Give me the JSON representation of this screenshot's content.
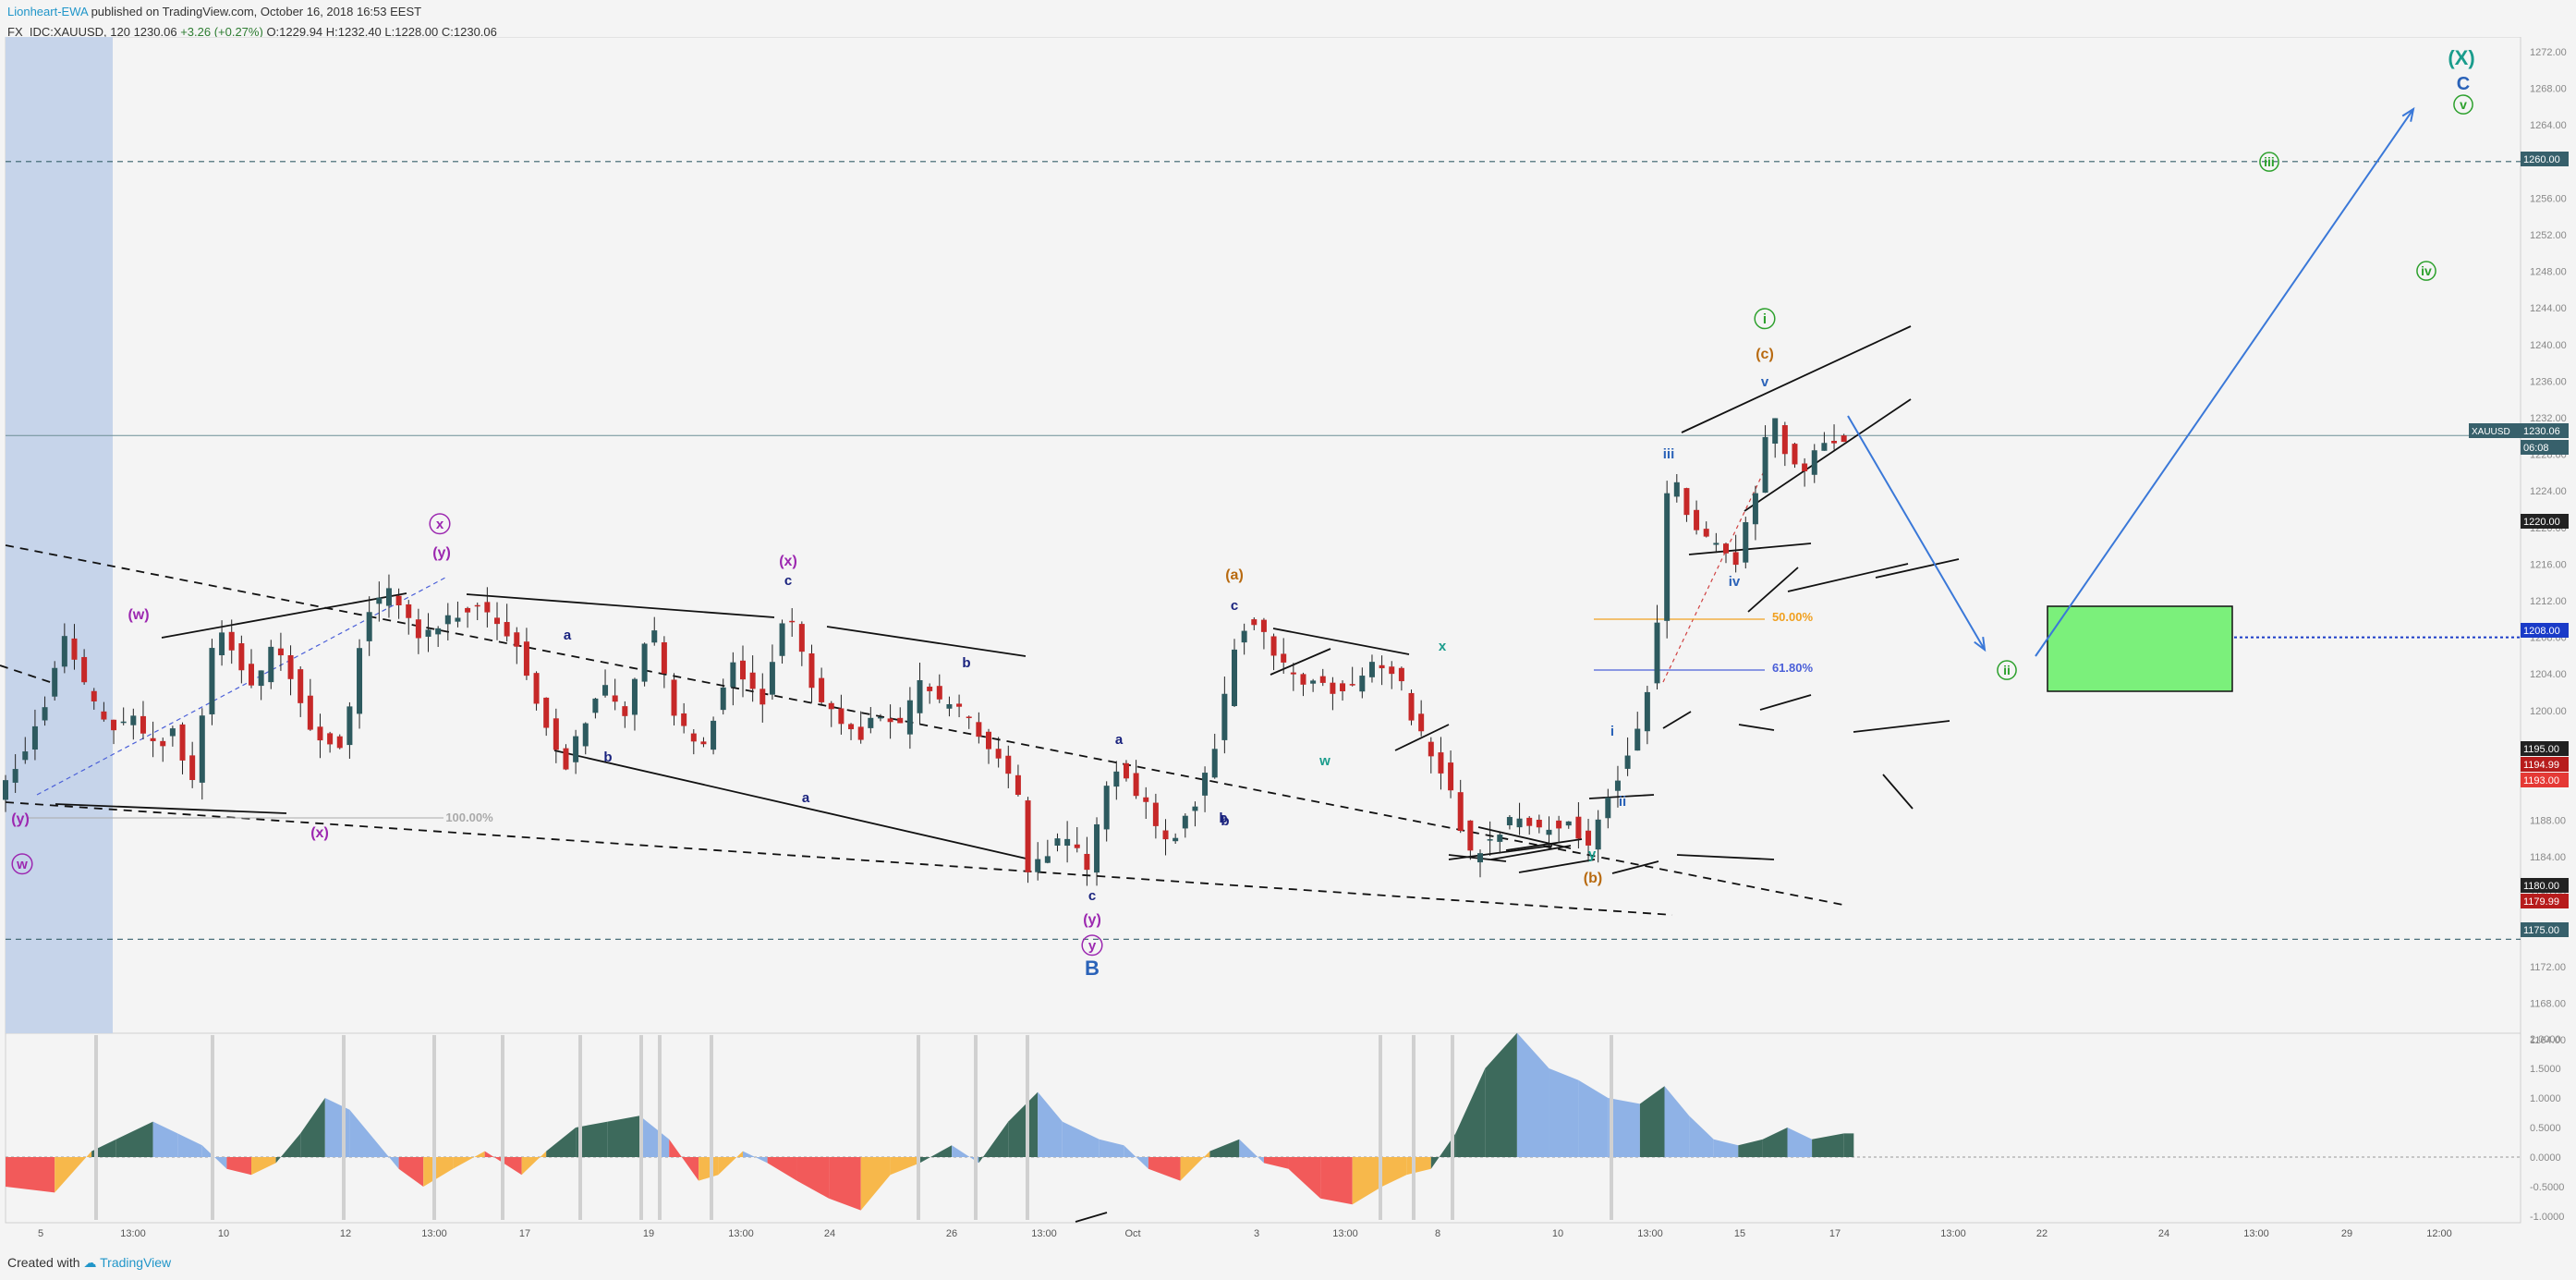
{
  "header": {
    "author": "Lionheart-EWA",
    "published": "published on TradingView.com, October 16, 2018 16:53 EEST",
    "symbol_line": "FX_IDC:XAUUSD, 120",
    "last": "1230.06",
    "change": "+3.26 (+0.27%)",
    "open": "O:1229.94",
    "high": "H:1232.40",
    "low": "L:1228.00",
    "close": "C:1230.06"
  },
  "footer": {
    "created_with": "Created with",
    "brand": "TradingView"
  },
  "chart_data": {
    "type": "candlestick",
    "symbol": "XAUUSD",
    "interval": "120",
    "ylim": [
      1164,
      1274
    ],
    "y_ticks": [
      1164,
      1168,
      1172,
      1176,
      1180,
      1184,
      1188,
      1192,
      1196,
      1200,
      1204,
      1208,
      1212,
      1216,
      1220,
      1224,
      1228,
      1232,
      1236,
      1240,
      1244,
      1248,
      1252,
      1256,
      1260,
      1264,
      1268,
      1272
    ],
    "price_badges": [
      {
        "label": "XAUUSD",
        "value": "1230.06",
        "color": "#37606b"
      },
      {
        "label": "",
        "value": "06:08",
        "color": "#37606b"
      },
      {
        "label": "",
        "value": "1260.00",
        "color": "#37606b"
      },
      {
        "label": "",
        "value": "1220.00",
        "color": "#222222"
      },
      {
        "label": "",
        "value": "1208.00",
        "color": "#1a3bc8"
      },
      {
        "label": "",
        "value": "1195.00",
        "color": "#222222"
      },
      {
        "label": "",
        "value": "1194.99",
        "color": "#b71c1c"
      },
      {
        "label": "",
        "value": "1193.00",
        "color": "#e53935"
      },
      {
        "label": "",
        "value": "1180.00",
        "color": "#222222"
      },
      {
        "label": "",
        "value": "1179.99",
        "color": "#b71c1c"
      },
      {
        "label": "",
        "value": "1175.00",
        "color": "#37606b"
      }
    ],
    "x_ticks": [
      "5",
      "13:00",
      "10",
      "12",
      "13:00",
      "17",
      "19",
      "13:00",
      "24",
      "26",
      "13:00",
      "Oct",
      "3",
      "13:00",
      "8",
      "10",
      "13:00",
      "15",
      "17",
      "13:00",
      "22",
      "24",
      "13:00",
      "29",
      "12:00"
    ],
    "path_points": [
      [
        0,
        1190
      ],
      [
        10,
        1195
      ],
      [
        20,
        1201
      ],
      [
        28,
        1208
      ],
      [
        35,
        1203
      ],
      [
        45,
        1198
      ],
      [
        55,
        1199
      ],
      [
        65,
        1196
      ],
      [
        72,
        1198
      ],
      [
        80,
        1192
      ],
      [
        90,
        1210
      ],
      [
        100,
        1205
      ],
      [
        106,
        1202
      ],
      [
        113,
        1208
      ],
      [
        120,
        1204
      ],
      [
        130,
        1197
      ],
      [
        142,
        1196
      ],
      [
        150,
        1211
      ],
      [
        160,
        1213
      ],
      [
        172,
        1208
      ],
      [
        182,
        1210
      ],
      [
        196,
        1212
      ],
      [
        212,
        1207
      ],
      [
        225,
        1198
      ],
      [
        232,
        1194
      ],
      [
        246,
        1203
      ],
      [
        256,
        1199
      ],
      [
        266,
        1210
      ],
      [
        276,
        1200
      ],
      [
        286,
        1195
      ],
      [
        300,
        1205
      ],
      [
        312,
        1201
      ],
      [
        322,
        1212
      ],
      [
        332,
        1203
      ],
      [
        342,
        1199
      ],
      [
        350,
        1197
      ],
      [
        358,
        1199
      ],
      [
        368,
        1198
      ],
      [
        376,
        1203
      ],
      [
        384,
        1201
      ],
      [
        392,
        1200
      ],
      [
        402,
        1197
      ],
      [
        410,
        1194
      ],
      [
        416,
        1190
      ],
      [
        420,
        1182
      ],
      [
        426,
        1184
      ],
      [
        435,
        1186
      ],
      [
        444,
        1183
      ],
      [
        455,
        1194
      ],
      [
        465,
        1191
      ],
      [
        472,
        1187
      ],
      [
        478,
        1186
      ],
      [
        490,
        1191
      ],
      [
        498,
        1198
      ],
      [
        505,
        1209
      ],
      [
        512,
        1210
      ],
      [
        520,
        1206
      ],
      [
        530,
        1203
      ],
      [
        540,
        1203
      ],
      [
        549,
        1202
      ],
      [
        560,
        1205
      ],
      [
        570,
        1204
      ],
      [
        578,
        1198
      ],
      [
        590,
        1193
      ],
      [
        600,
        1184
      ],
      [
        610,
        1187
      ],
      [
        620,
        1188
      ],
      [
        630,
        1187
      ],
      [
        640,
        1188
      ],
      [
        648,
        1185
      ],
      [
        655,
        1190
      ],
      [
        662,
        1194
      ],
      [
        670,
        1200
      ],
      [
        675,
        1206
      ],
      [
        680,
        1223
      ],
      [
        685,
        1225
      ],
      [
        690,
        1220
      ],
      [
        695,
        1219
      ],
      [
        702,
        1218
      ],
      [
        708,
        1216
      ],
      [
        714,
        1223
      ],
      [
        718,
        1226
      ],
      [
        722,
        1233
      ],
      [
        726,
        1230
      ],
      [
        730,
        1227
      ],
      [
        736,
        1226
      ],
      [
        742,
        1229
      ],
      [
        748,
        1230
      ]
    ],
    "indicator": {
      "ylim": [
        -1.2,
        2.2
      ],
      "y_ticks": [
        2.0,
        1.5,
        1.0,
        0.5,
        0.0,
        -0.5,
        -1.0
      ],
      "y_tick_labels": [
        "2.0000",
        "1.5000",
        "1.0000",
        "0.5000",
        "0.0000",
        "-0.5000",
        "-1.0000"
      ],
      "x": [
        0,
        20,
        35,
        45,
        60,
        70,
        80,
        90,
        100,
        110,
        120,
        130,
        140,
        150,
        160,
        170,
        182,
        195,
        210,
        220,
        232,
        245,
        258,
        270,
        282,
        290,
        300,
        310,
        322,
        335,
        348,
        360,
        372,
        385,
        396,
        408,
        420,
        430,
        445,
        455,
        465,
        478,
        490,
        502,
        512,
        522,
        535,
        548,
        560,
        570,
        580,
        590,
        602,
        615,
        628,
        640,
        652,
        665,
        675,
        685,
        695,
        705,
        715,
        725,
        735,
        748,
        752
      ],
      "values": [
        -0.5,
        -0.6,
        0.1,
        0.3,
        0.6,
        0.4,
        0.2,
        -0.2,
        -0.3,
        -0.1,
        0.4,
        1.0,
        0.8,
        0.3,
        -0.2,
        -0.5,
        -0.2,
        0.1,
        -0.3,
        0.1,
        0.5,
        0.6,
        0.7,
        0.3,
        -0.4,
        -0.3,
        0.1,
        -0.1,
        -0.4,
        -0.7,
        -0.9,
        -0.3,
        -0.1,
        0.2,
        -0.1,
        0.6,
        1.1,
        0.6,
        0.3,
        0.2,
        -0.2,
        -0.4,
        0.1,
        0.3,
        -0.1,
        -0.2,
        -0.7,
        -0.8,
        -0.5,
        -0.3,
        -0.2,
        0.4,
        1.5,
        2.1,
        1.5,
        1.3,
        1.0,
        0.9,
        1.2,
        0.7,
        0.3,
        0.2,
        0.3,
        0.5,
        0.3,
        0.4,
        0.4
      ]
    },
    "annotations": [
      "(X)",
      "C",
      "v",
      "iii",
      "iv",
      "i",
      "(c)",
      "ii",
      "iii",
      "iv",
      "v",
      "i",
      "ii",
      "y",
      "(b)",
      "x",
      "w",
      "(a)",
      "c",
      "b",
      "a",
      "(x)",
      "c",
      "a",
      "b",
      "(y)",
      "x",
      "(w)",
      "b",
      "(y)",
      "(x)",
      "w",
      "c",
      "(y)",
      "y",
      "B",
      "a",
      "b",
      "100.00%",
      "50.00%",
      "61.80%"
    ]
  }
}
